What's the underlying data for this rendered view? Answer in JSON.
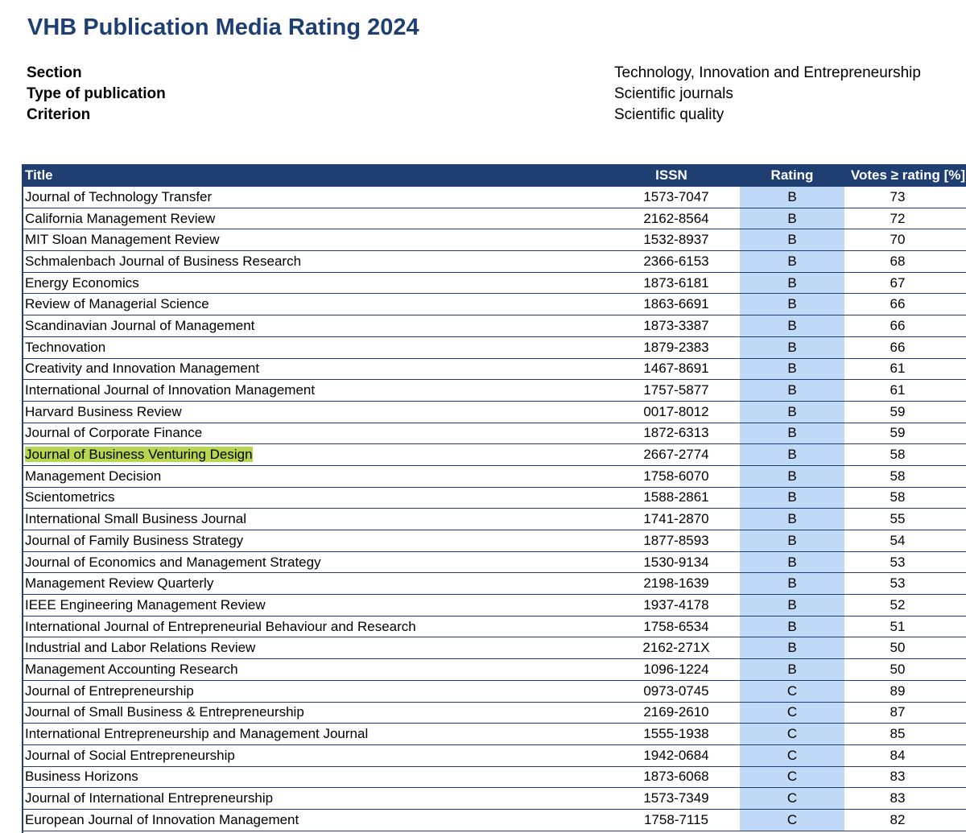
{
  "document": {
    "title": "VHB Publication Media Rating 2024",
    "meta": [
      {
        "label": "Section",
        "value": "Technology, Innovation and Entrepreneurship"
      },
      {
        "label": "Type of publication",
        "value": "Scientific journals"
      },
      {
        "label": "Criterion",
        "value": "Scientific quality"
      }
    ]
  },
  "table": {
    "headers": {
      "title": "Title",
      "issn": "ISSN",
      "rating": "Rating",
      "votes": "Votes ≥ rating [%]"
    },
    "highlight_color": "#b6d74f",
    "rating_fill_color": "#bfd9f6",
    "header_color": "#1f3f73",
    "rows": [
      {
        "title": "Journal of Technology Transfer",
        "issn": "1573-7047",
        "rating": "B",
        "votes": "73"
      },
      {
        "title": "California Management Review",
        "issn": "2162-8564",
        "rating": "B",
        "votes": "72"
      },
      {
        "title": "MIT Sloan Management Review",
        "issn": "1532-8937",
        "rating": "B",
        "votes": "70"
      },
      {
        "title": "Schmalenbach Journal of Business Research",
        "issn": "2366-6153",
        "rating": "B",
        "votes": "68"
      },
      {
        "title": "Energy Economics",
        "issn": "1873-6181",
        "rating": "B",
        "votes": "67"
      },
      {
        "title": "Review of Managerial Science",
        "issn": "1863-6691",
        "rating": "B",
        "votes": "66"
      },
      {
        "title": "Scandinavian Journal of Management",
        "issn": "1873-3387",
        "rating": "B",
        "votes": "66"
      },
      {
        "title": "Technovation",
        "issn": "1879-2383",
        "rating": "B",
        "votes": "66"
      },
      {
        "title": "Creativity and Innovation Management",
        "issn": "1467-8691",
        "rating": "B",
        "votes": "61"
      },
      {
        "title": "International Journal of Innovation Management",
        "issn": "1757-5877",
        "rating": "B",
        "votes": "61"
      },
      {
        "title": "Harvard Business Review",
        "issn": "0017-8012",
        "rating": "B",
        "votes": "59"
      },
      {
        "title": "Journal of Corporate Finance",
        "issn": "1872-6313",
        "rating": "B",
        "votes": "59"
      },
      {
        "title": "Journal of Business Venturing Design",
        "issn": "2667-2774",
        "rating": "B",
        "votes": "58",
        "highlighted": true
      },
      {
        "title": "Management Decision",
        "issn": "1758-6070",
        "rating": "B",
        "votes": "58"
      },
      {
        "title": "Scientometrics",
        "issn": "1588-2861",
        "rating": "B",
        "votes": "58"
      },
      {
        "title": "International Small Business Journal",
        "issn": "1741-2870",
        "rating": "B",
        "votes": "55"
      },
      {
        "title": "Journal of Family Business Strategy",
        "issn": "1877-8593",
        "rating": "B",
        "votes": "54"
      },
      {
        "title": "Journal of Economics and Management Strategy",
        "issn": "1530-9134",
        "rating": "B",
        "votes": "53"
      },
      {
        "title": "Management Review Quarterly",
        "issn": "2198-1639",
        "rating": "B",
        "votes": "53"
      },
      {
        "title": "IEEE Engineering Management Review",
        "issn": "1937-4178",
        "rating": "B",
        "votes": "52"
      },
      {
        "title": "International Journal of Entrepreneurial Behaviour and Research",
        "issn": "1758-6534",
        "rating": "B",
        "votes": "51"
      },
      {
        "title": "Industrial and Labor Relations Review",
        "issn": "2162-271X",
        "rating": "B",
        "votes": "50"
      },
      {
        "title": "Management Accounting Research",
        "issn": "1096-1224",
        "rating": "B",
        "votes": "50"
      },
      {
        "title": "Journal of Entrepreneurship",
        "issn": "0973-0745",
        "rating": "C",
        "votes": "89"
      },
      {
        "title": "Journal of Small Business & Entrepreneurship",
        "issn": "2169-2610",
        "rating": "C",
        "votes": "87"
      },
      {
        "title": "International Entrepreneurship and Management Journal",
        "issn": "1555-1938",
        "rating": "C",
        "votes": "85"
      },
      {
        "title": "Journal of Social Entrepreneurship",
        "issn": "1942-0684",
        "rating": "C",
        "votes": "84"
      },
      {
        "title": "Business Horizons",
        "issn": "1873-6068",
        "rating": "C",
        "votes": "83"
      },
      {
        "title": "Journal of International Entrepreneurship",
        "issn": "1573-7349",
        "rating": "C",
        "votes": "83"
      },
      {
        "title": "European Journal of Innovation Management",
        "issn": "1758-7115",
        "rating": "C",
        "votes": "82"
      }
    ]
  }
}
